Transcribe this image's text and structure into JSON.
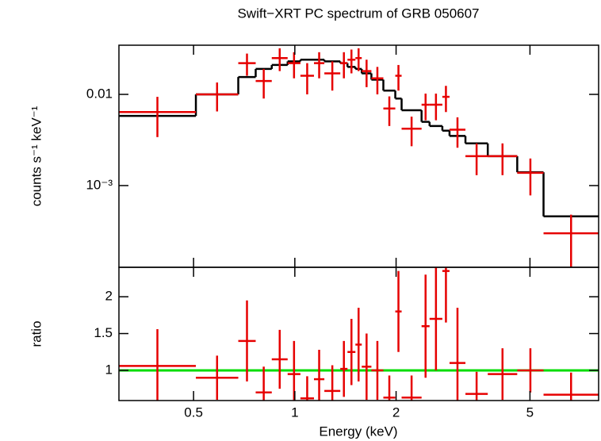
{
  "chart_data": {
    "type": "spectrum",
    "title": "Swift−XRT PC spectrum of GRB 050607",
    "xlabel": "Energy (keV)",
    "xscale": "log",
    "xlim": [
      0.3,
      8
    ],
    "xticks": [
      0.5,
      1,
      2,
      5
    ],
    "x_edges": [
      0.3,
      0.508,
      0.679,
      0.765,
      0.854,
      0.952,
      1.039,
      1.14,
      1.224,
      1.365,
      1.434,
      1.514,
      1.581,
      1.689,
      1.833,
      1.989,
      2.077,
      2.381,
      2.515,
      2.745,
      2.883,
      3.215,
      3.746,
      4.583,
      5.487,
      8
    ],
    "panels": [
      {
        "ylabel": "counts s⁻¹ keV⁻¹",
        "yscale": "log",
        "ylim": [
          0.000127,
          0.0346
        ],
        "yticks": [
          0.01,
          {
            "value": 0.001,
            "label": "10⁻³"
          }
        ],
        "data": {
          "color": "#e60000",
          "values": [
            0.0064,
            0.01,
            0.022,
            0.014,
            0.025,
            0.022,
            0.016,
            0.022,
            0.017,
            0.022,
            0.024,
            0.025,
            0.018,
            0.015,
            0.007,
            0.016,
            0.0042,
            0.0077,
            0.0077,
            0.0094,
            0.0041,
            0.0021,
            0.0021,
            0.00138,
            0.0003
          ],
          "errors": [
            0.003,
            0.0035,
            0.006,
            0.005,
            0.007,
            0.007,
            0.006,
            0.007,
            0.006,
            0.007,
            0.007,
            0.007,
            0.006,
            0.005,
            0.0025,
            0.005,
            0.0015,
            0.0025,
            0.0025,
            0.003,
            0.0015,
            0.0008,
            0.0008,
            0.0006,
            0.00018
          ]
        },
        "model": {
          "color": "#000000",
          "values": [
            0.0058,
            0.01,
            0.0155,
            0.019,
            0.021,
            0.023,
            0.024,
            0.024,
            0.023,
            0.022,
            0.02,
            0.019,
            0.017,
            0.0145,
            0.011,
            0.009,
            0.0067,
            0.005,
            0.0045,
            0.004,
            0.0035,
            0.0029,
            0.0021,
            0.0014,
            0.00046
          ]
        }
      },
      {
        "ylabel": "ratio",
        "yscale": "linear",
        "ylim": [
          0.59,
          2.4
        ],
        "yticks": [
          1,
          1.5,
          2
        ],
        "data": {
          "color": "#e60000",
          "values": [
            1.06,
            0.9,
            1.4,
            0.7,
            1.15,
            0.95,
            0.62,
            0.88,
            0.72,
            1.02,
            1.25,
            1.35,
            1.05,
            1.0,
            0.63,
            1.8,
            0.63,
            1.6,
            1.7,
            2.35,
            1.1,
            0.68,
            0.95,
            1.0,
            0.67
          ],
          "errors": [
            0.5,
            0.3,
            0.55,
            0.35,
            0.4,
            0.45,
            0.3,
            0.4,
            0.35,
            0.38,
            0.45,
            0.5,
            0.45,
            0.4,
            0.3,
            0.55,
            0.3,
            0.7,
            0.7,
            0.7,
            0.75,
            0.3,
            0.35,
            0.3,
            0.3
          ]
        },
        "reference": {
          "value": 1,
          "color": "#00dd00"
        }
      }
    ]
  }
}
